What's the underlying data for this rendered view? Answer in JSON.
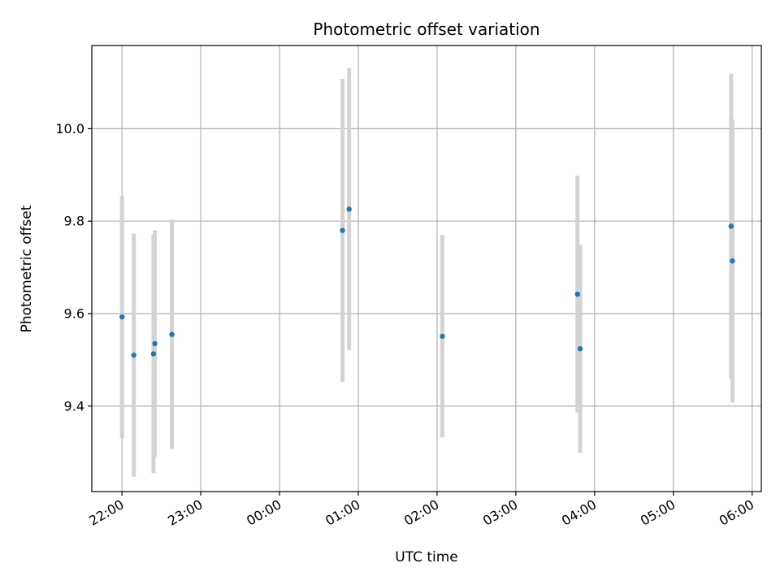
{
  "chart_data": {
    "type": "scatter",
    "title": "Photometric offset variation",
    "xlabel": "UTC time",
    "ylabel": "Photometric offset",
    "x_is_time": true,
    "x_ticks": [
      "22:00",
      "23:00",
      "00:00",
      "01:00",
      "02:00",
      "03:00",
      "04:00",
      "05:00",
      "06:00"
    ],
    "y_ticks": [
      "9.4",
      "9.6",
      "9.8",
      "10.0"
    ],
    "xlim": [
      "21:37",
      "06:07"
    ],
    "ylim": [
      9.215,
      10.18
    ],
    "grid": true,
    "point_color": "#1f77b4",
    "errorbar_color": "#d3d3d3",
    "points": [
      {
        "time": "22:00",
        "y": 9.593,
        "err": 0.262
      },
      {
        "time": "22:09",
        "y": 9.51,
        "err": 0.263
      },
      {
        "time": "22:24",
        "y": 9.513,
        "err": 0.258
      },
      {
        "time": "22:25",
        "y": 9.535,
        "err": 0.245
      },
      {
        "time": "22:38",
        "y": 9.555,
        "err": 0.248
      },
      {
        "time": "00:48",
        "y": 9.78,
        "err": 0.328
      },
      {
        "time": "00:53",
        "y": 9.826,
        "err": 0.305
      },
      {
        "time": "02:04",
        "y": 9.551,
        "err": 0.219
      },
      {
        "time": "03:47",
        "y": 9.642,
        "err": 0.256
      },
      {
        "time": "03:49",
        "y": 9.524,
        "err": 0.225
      },
      {
        "time": "05:44",
        "y": 9.789,
        "err": 0.33
      },
      {
        "time": "05:45",
        "y": 9.714,
        "err": 0.306
      }
    ]
  }
}
